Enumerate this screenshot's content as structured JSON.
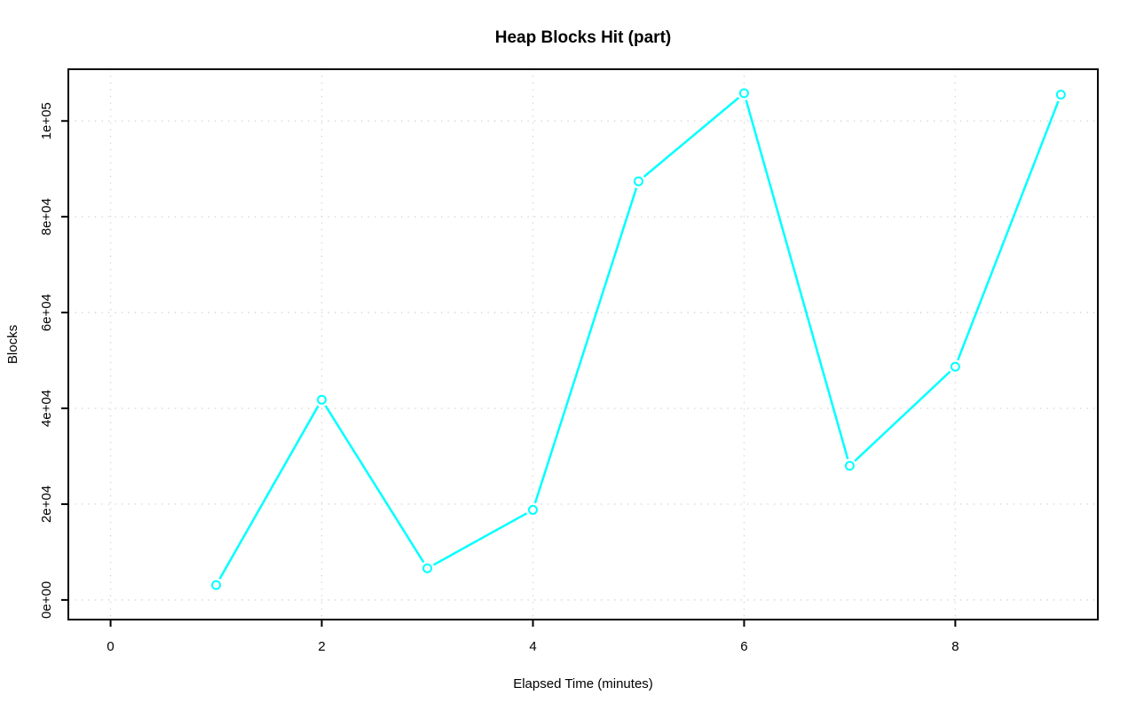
{
  "chart_data": {
    "type": "line",
    "title": "Heap Blocks Hit (part)",
    "xlabel": "Elapsed Time (minutes)",
    "ylabel": "Blocks",
    "x": [
      1,
      2,
      3,
      4,
      5,
      6,
      7,
      8,
      9
    ],
    "y": [
      3100,
      41800,
      6600,
      18800,
      87400,
      105800,
      28000,
      48700,
      105500
    ],
    "x_tick_values": [
      0,
      2,
      4,
      6,
      8
    ],
    "x_tick_labels": [
      "0",
      "2",
      "4",
      "6",
      "8"
    ],
    "y_tick_values": [
      0,
      20000,
      40000,
      60000,
      80000,
      100000
    ],
    "y_tick_labels": [
      "0e+00",
      "2e+04",
      "4e+04",
      "6e+04",
      "8e+04",
      "1e+05"
    ],
    "x_range": [
      -0.4,
      9.35
    ],
    "y_range": [
      -4100,
      110800
    ],
    "grid": "dotted, at all tick positions",
    "legend": "none",
    "line_color": "#00ffff",
    "marker": "open-circle",
    "marker_color": "#00ffff",
    "grid_color": "#d4d4d4",
    "axis_color": "#000000",
    "background_color": "#ffffff"
  }
}
